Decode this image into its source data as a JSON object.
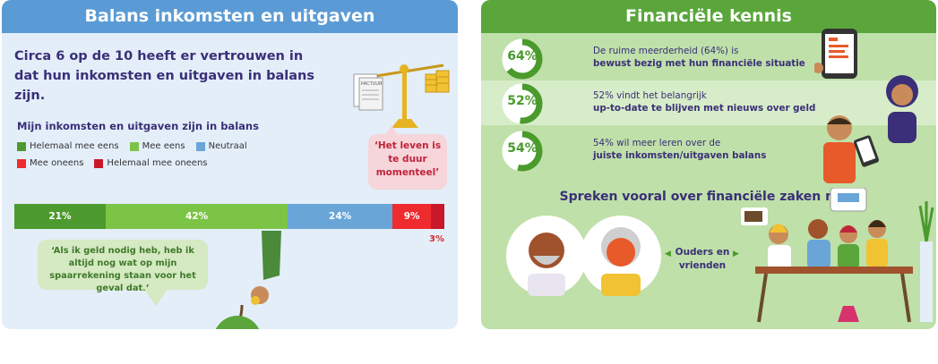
{
  "left": {
    "title": "Balans inkomsten en uitgaven",
    "headline": "Circa 6 op de 10 heeft er vertrouwen in dat hun inkomsten en uitgaven in balans zijn.",
    "chart_data": {
      "type": "bar",
      "title": "Mijn inkomsten en uitgaven zijn in balans",
      "stacked": true,
      "categories": [
        "Helemaal mee eens",
        "Mee eens",
        "Neutraal",
        "Mee oneens",
        "Helemaal mee oneens"
      ],
      "values": [
        21,
        42,
        24,
        9,
        3
      ],
      "labels": [
        "21%",
        "42%",
        "24%",
        "9%",
        "3%"
      ],
      "colors": [
        "#4d9a2e",
        "#7cc446",
        "#6aa5d8",
        "#ee2b2e",
        "#c8182a"
      ]
    },
    "quote_savings": "‘Als ik geld nodig heb, heb ik altijd nog wat op mijn spaarrekening staan voor het geval dat.’",
    "quote_expensive": "‘Het leven is te duur momenteel’",
    "invoice_label": "FACTUUR"
  },
  "right": {
    "title": "Financiële kennis",
    "stats": [
      {
        "value": 64,
        "label": "64%",
        "line1": "De ruime meerderheid (64%) is",
        "line2": "bewust bezig met hun financiële situatie"
      },
      {
        "value": 52,
        "label": "52%",
        "line1": "52% vindt het belangrijk",
        "line2": "up-to-date te blijven met nieuws over geld"
      },
      {
        "value": 54,
        "label": "54%",
        "line1": "54% wil meer leren over de",
        "line2": "juiste inkomsten/uitgaven balans"
      }
    ],
    "talk_title": "Spreken vooral over financiële zaken met:",
    "talk_label": "Ouders en vrienden"
  },
  "colors": {
    "blue_header": "#5b9bd5",
    "green_header": "#5aa63b",
    "navy_text": "#3a2f78",
    "donut_green": "#4a9a2c"
  }
}
